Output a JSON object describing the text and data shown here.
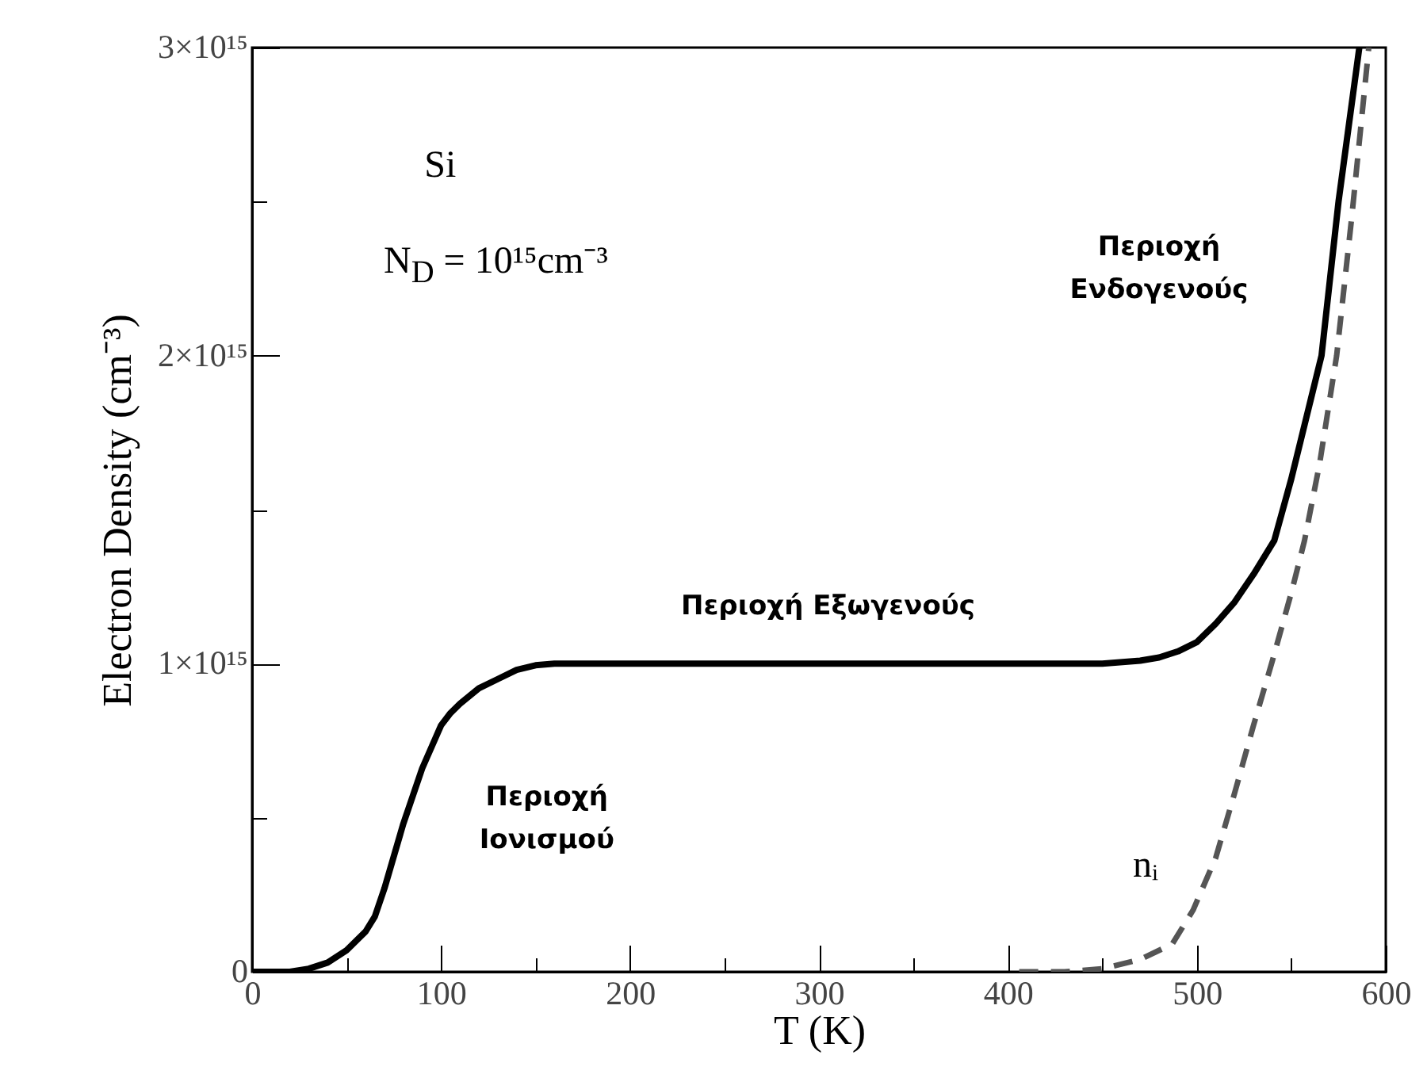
{
  "chart_data": {
    "type": "line",
    "xlabel": "T  (K)",
    "ylabel": "Electron Density  (cm⁻³)",
    "xlim": [
      0,
      600
    ],
    "ylim": [
      0,
      3000000000000000.0
    ],
    "xticks": [
      0,
      {
        "value": 50,
        "label": null
      },
      100,
      {
        "value": 150,
        "label": null
      },
      200,
      {
        "value": 250,
        "label": null
      },
      300,
      {
        "value": 350,
        "label": null
      },
      400,
      {
        "value": 450,
        "label": null
      },
      500,
      {
        "value": 550,
        "label": null
      },
      600
    ],
    "yticks": [
      0,
      {
        "value": 500000000000000.0,
        "label": null
      },
      {
        "value": 1000000000000000.0,
        "label": "1×10¹⁵"
      },
      {
        "value": 1500000000000000.0,
        "label": null
      },
      {
        "value": 2000000000000000.0,
        "label": "2×10¹⁵"
      },
      {
        "value": 2500000000000000.0,
        "label": null
      },
      {
        "value": 3000000000000000.0,
        "label": "3×10¹⁵"
      }
    ],
    "grid": false,
    "legend": false,
    "series": [
      {
        "color": "#000000",
        "line_style": "solid",
        "x": [
          0,
          20,
          30,
          40,
          50,
          60,
          65,
          70,
          80,
          90,
          100,
          105,
          110,
          120,
          130,
          140,
          150,
          160,
          200,
          300,
          400,
          450,
          470,
          480,
          490,
          500,
          510,
          520,
          530,
          541,
          550,
          560,
          566,
          575,
          586
        ],
        "values": [
          0,
          0,
          10000000000000.0,
          30000000000000.0,
          70000000000000.0,
          130000000000000.0,
          180000000000000.0,
          270000000000000.0,
          480000000000000.0,
          660000000000000.0,
          800000000000000.0,
          840000000000000.0,
          870000000000000.0,
          920000000000000.0,
          950000000000000.0,
          980000000000000.0,
          995000000000000.0,
          1000000000000000.0,
          1000000000000000.0,
          1000000000000000.0,
          1000000000000000.0,
          1000000000000000.0,
          1010000000000000.0,
          1020000000000000.0,
          1040000000000000.0,
          1070000000000000.0,
          1130000000000000.0,
          1200000000000000.0,
          1290000000000000.0,
          1400000000000000.0,
          1600000000000000.0,
          1850000000000000.0,
          2000000000000000.0,
          2500000000000000.0,
          3000000000000000.0
        ]
      },
      {
        "name": "nᵢ",
        "color": "#555555",
        "line_style": "dashed",
        "x": [
          406,
          430,
          450,
          470,
          487,
          498,
          510,
          520,
          530,
          540,
          550,
          557,
          565,
          574,
          582,
          591
        ],
        "values": [
          0,
          0,
          10000000000000.0,
          40000000000000.0,
          90000000000000.0,
          200000000000000.0,
          370000000000000.0,
          580000000000000.0,
          800000000000000.0,
          1010000000000000.0,
          1230000000000000.0,
          1400000000000000.0,
          1650000000000000.0,
          2000000000000000.0,
          2450000000000000.0,
          3000000000000000.0
        ]
      }
    ],
    "annotations": [
      "Si",
      "N$_{D}$ = 10¹⁵cm⁻³",
      "Περιοχή Ιονισμού",
      "Περιοχή Εξωγενούς",
      "Περιοχή Ενδογενούς"
    ]
  }
}
